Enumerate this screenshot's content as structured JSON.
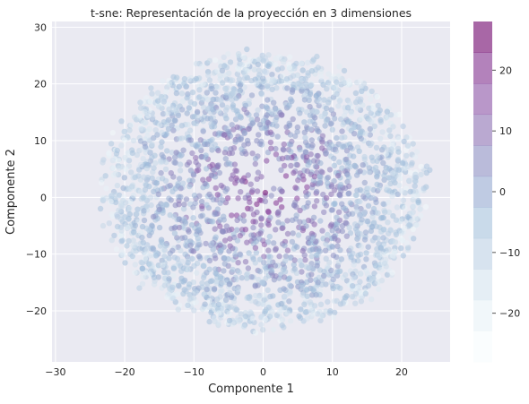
{
  "chart_data": {
    "type": "scatter",
    "title": "t-sne: Representación de la proyección en 3 dimensiones",
    "xlabel": "Componente 1",
    "ylabel": "Componente 2",
    "xlim": [
      -30.5,
      27
    ],
    "ylim": [
      -29,
      31
    ],
    "x_ticks": [
      -30,
      -20,
      -10,
      0,
      10,
      20
    ],
    "y_ticks": [
      -20,
      -10,
      0,
      10,
      20,
      30
    ],
    "grid": true,
    "colorbar": {
      "range": [
        -28,
        28
      ],
      "ticks": [
        -20,
        -10,
        0,
        10,
        20
      ],
      "levels": 11,
      "cmap_stops": [
        "#f7fcfd",
        "#e0ecf4",
        "#bfd3e6",
        "#9ebcda",
        "#8c96c6",
        "#8c6bb1",
        "#88419d",
        "#6e016b"
      ]
    },
    "point_cloud": {
      "center": [
        0,
        1
      ],
      "radius_x": 24,
      "radius_y": 26,
      "approx_points": 2600,
      "note_color_mapping": "outer ring light blue, inner region purple"
    },
    "colors": {
      "axes_background": "#eaeaf2",
      "grid": "#ffffff"
    }
  }
}
